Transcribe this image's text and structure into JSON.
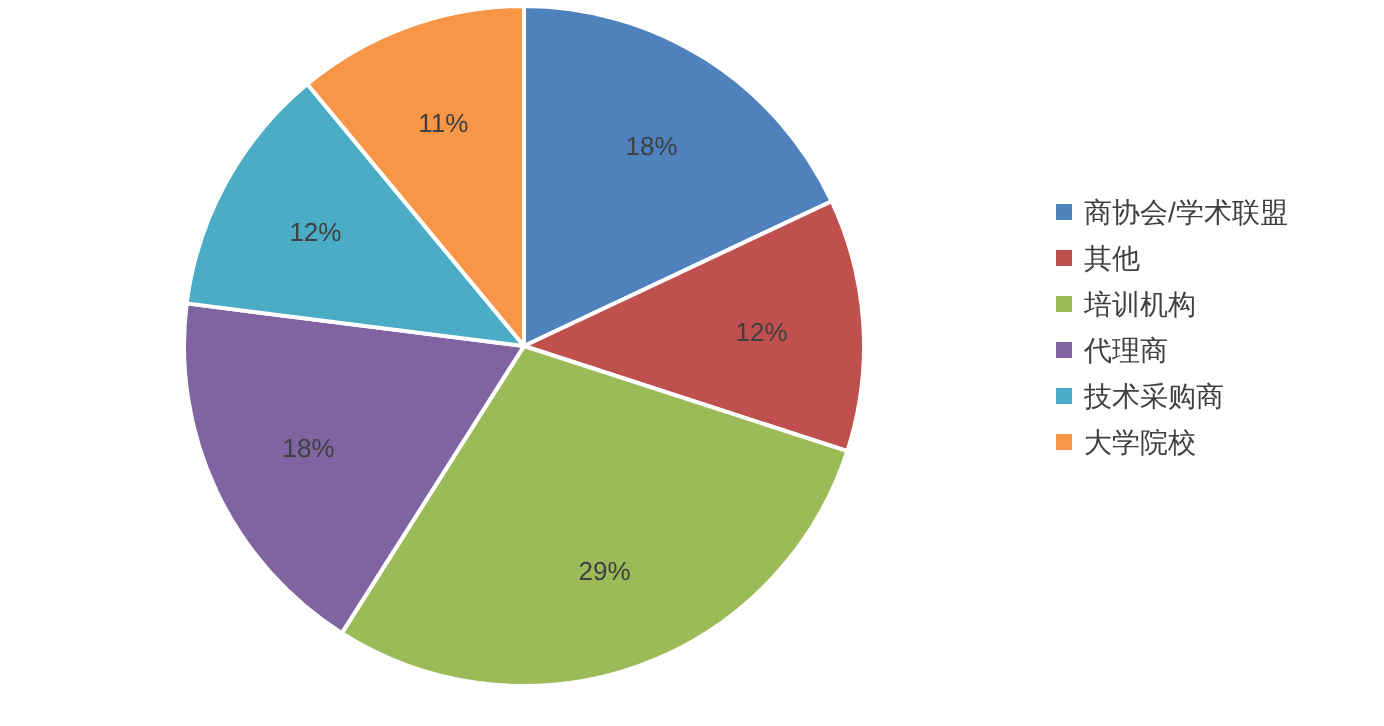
{
  "chart_data": {
    "type": "pie",
    "categories": [
      "商协会/学术联盟",
      "其他",
      "培训机构",
      "代理商",
      "技术采购商",
      "大学院校"
    ],
    "values": [
      18,
      12,
      29,
      18,
      12,
      11
    ],
    "colors": [
      "#4f81bd",
      "#c0504d",
      "#9bbb59",
      "#8064a2",
      "#4bacc6",
      "#f79646"
    ],
    "value_labels": [
      "18%",
      "12%",
      "29%",
      "18%",
      "12%",
      "11%"
    ],
    "legend": "right"
  }
}
